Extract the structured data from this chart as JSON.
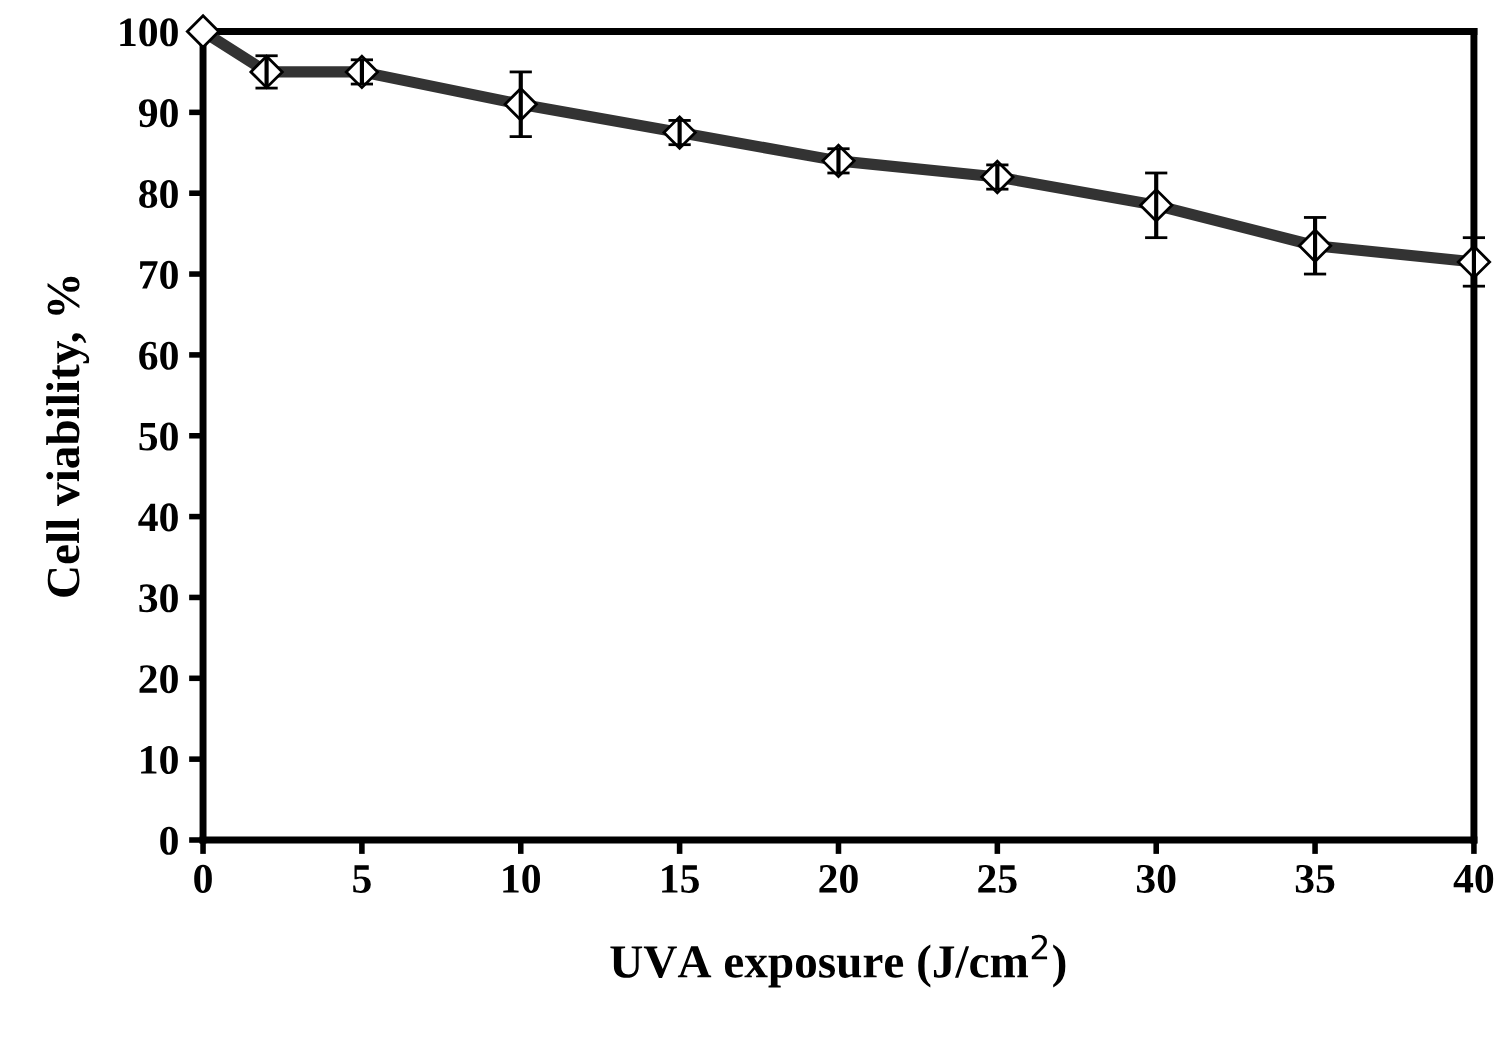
{
  "chart_data": {
    "type": "line",
    "xlabel": "UVA exposure (J/cm$^{2}$)",
    "ylabel": "Cell viability, %",
    "x": [
      0,
      2,
      5,
      10,
      15,
      20,
      25,
      30,
      35,
      40
    ],
    "series": [
      {
        "color": "#333333",
        "values": [
          100,
          95,
          95,
          91,
          87.5,
          84,
          82,
          78.5,
          73.5,
          71.5
        ],
        "errors": [
          null,
          2,
          1.5,
          4,
          1.5,
          1.5,
          1.5,
          4,
          3.5,
          3
        ]
      }
    ],
    "xlim": [
      0,
      40
    ],
    "xticks": [
      0,
      5,
      10,
      15,
      20,
      25,
      30,
      35,
      40
    ],
    "ylim": [
      0,
      100
    ],
    "yticks": [
      0,
      10,
      20,
      30,
      40,
      50,
      60,
      70,
      80,
      90,
      100
    ],
    "marker": "diamond",
    "line_style": "solid",
    "grid": false,
    "legend": false
  }
}
